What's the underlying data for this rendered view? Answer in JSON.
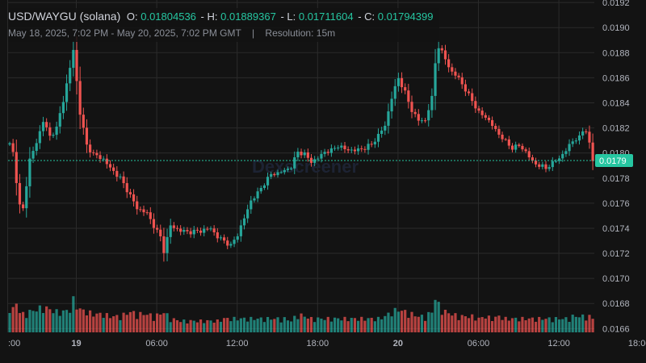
{
  "legend": {
    "symbol": "USD/WAYGU (solana)",
    "open_label": "O:",
    "open": "0.01804536",
    "high_label": "H:",
    "high": "0.01889367",
    "low_label": "L:",
    "low": "0.01711604",
    "close_label": "C:",
    "close": "0.01794399",
    "date_range": "May 18, 2025, 7:02 PM - May 20, 2025, 7:02 PM GMT",
    "separator": "|",
    "resolution": "Resolution: 15m"
  },
  "watermark": "Dexscreener",
  "colors": {
    "background": "#131313",
    "grid": "#2b2b2b",
    "up": "#26a69a",
    "down": "#ef5350",
    "up_volume": "#26a69a",
    "down_volume": "#ef5350",
    "text": "#d1d4dc",
    "axis_text": "#b2b5be",
    "price_tag": "#26c6a1"
  },
  "chart_data": {
    "type": "candlestick",
    "title": "USD/WAYGU (solana)",
    "resolution": "15m",
    "y_range": [
      0.01657,
      0.01922
    ],
    "y_ticks": [
      "0.0192",
      "0.0190",
      "0.0188",
      "0.0186",
      "0.0184",
      "0.0182",
      "0.0180",
      "0.0178",
      "0.0176",
      "0.0174",
      "0.0172",
      "0.0170",
      "0.0168",
      "0.0166"
    ],
    "y_tick_values": [
      0.0192,
      0.019,
      0.0188,
      0.0186,
      0.0184,
      0.0182,
      0.018,
      0.0178,
      0.0176,
      0.0174,
      0.0172,
      0.017,
      0.0168,
      0.0166
    ],
    "x_ticks": [
      {
        "label": ":00",
        "hours_from_start": -0.15,
        "bold": false
      },
      {
        "label": "19",
        "hours_from_start": 4.97,
        "bold": true
      },
      {
        "label": "06:00",
        "hours_from_start": 10.97,
        "bold": false
      },
      {
        "label": "12:00",
        "hours_from_start": 16.97,
        "bold": false
      },
      {
        "label": "18:00",
        "hours_from_start": 22.97,
        "bold": false
      },
      {
        "label": "20",
        "hours_from_start": 28.97,
        "bold": true
      },
      {
        "label": "06:00",
        "hours_from_start": 34.97,
        "bold": false
      },
      {
        "label": "12:00",
        "hours_from_start": 40.97,
        "bold": false
      },
      {
        "label": "18:00",
        "hours_from_start": 46.97,
        "bold": false
      }
    ],
    "last_price": 0.01794,
    "last_price_label": "0.0179",
    "anchors": [
      [
        0,
        0.01807,
        1.2
      ],
      [
        1,
        0.018,
        1.0
      ],
      [
        2,
        0.01778,
        1.3
      ],
      [
        3,
        0.01758,
        0.9
      ],
      [
        4,
        0.01755,
        0.8
      ],
      [
        6,
        0.01795,
        0.9
      ],
      [
        8,
        0.01808,
        1.0
      ],
      [
        10,
        0.01826,
        1.1
      ],
      [
        12,
        0.01813,
        1.0
      ],
      [
        14,
        0.0182,
        0.9
      ],
      [
        16,
        0.01842,
        0.9
      ],
      [
        18,
        0.01868,
        1.0
      ],
      [
        19,
        0.01882,
        1.4
      ],
      [
        21,
        0.01832,
        1.0
      ],
      [
        23,
        0.01806,
        0.9
      ],
      [
        25,
        0.01799,
        0.8
      ],
      [
        28,
        0.01795,
        0.8
      ],
      [
        30,
        0.01788,
        0.7
      ],
      [
        33,
        0.0178,
        0.7
      ],
      [
        36,
        0.01766,
        0.9
      ],
      [
        38,
        0.01756,
        0.8
      ],
      [
        41,
        0.01752,
        0.8
      ],
      [
        43,
        0.01742,
        0.7
      ],
      [
        45,
        0.01733,
        0.8
      ],
      [
        46,
        0.01722,
        0.9
      ],
      [
        48,
        0.01742,
        0.6
      ],
      [
        51,
        0.01738,
        0.5
      ],
      [
        54,
        0.01737,
        0.5
      ],
      [
        57,
        0.01738,
        0.5
      ],
      [
        60,
        0.0174,
        0.5
      ],
      [
        62,
        0.01733,
        0.5
      ],
      [
        64,
        0.0173,
        0.6
      ],
      [
        66,
        0.01726,
        0.6
      ],
      [
        68,
        0.01735,
        0.6
      ],
      [
        70,
        0.01748,
        0.6
      ],
      [
        72,
        0.01762,
        0.6
      ],
      [
        74,
        0.01768,
        0.6
      ],
      [
        76,
        0.01776,
        0.6
      ],
      [
        78,
        0.01783,
        0.6
      ],
      [
        80,
        0.01784,
        0.6
      ],
      [
        82,
        0.01786,
        0.6
      ],
      [
        84,
        0.01789,
        0.5
      ],
      [
        86,
        0.01801,
        0.8
      ],
      [
        88,
        0.01799,
        0.7
      ],
      [
        90,
        0.01793,
        0.6
      ],
      [
        92,
        0.01796,
        0.6
      ],
      [
        94,
        0.01801,
        0.6
      ],
      [
        96,
        0.01802,
        0.6
      ],
      [
        98,
        0.01806,
        0.6
      ],
      [
        100,
        0.01803,
        0.6
      ],
      [
        103,
        0.01802,
        0.6
      ],
      [
        106,
        0.01804,
        0.6
      ],
      [
        108,
        0.01807,
        0.6
      ],
      [
        110,
        0.01814,
        0.6
      ],
      [
        112,
        0.01822,
        0.7
      ],
      [
        114,
        0.01844,
        0.9
      ],
      [
        116,
        0.0186,
        1.0
      ],
      [
        118,
        0.01848,
        0.9
      ],
      [
        120,
        0.01834,
        0.8
      ],
      [
        122,
        0.01826,
        0.7
      ],
      [
        124,
        0.01826,
        0.7
      ],
      [
        126,
        0.01844,
        0.9
      ],
      [
        127,
        0.01872,
        1.5
      ],
      [
        128,
        0.01885,
        1.2
      ],
      [
        130,
        0.01875,
        0.9
      ],
      [
        132,
        0.01864,
        0.8
      ],
      [
        134,
        0.0186,
        0.7
      ],
      [
        136,
        0.0185,
        0.7
      ],
      [
        138,
        0.01842,
        0.7
      ],
      [
        140,
        0.01832,
        0.6
      ],
      [
        142,
        0.01829,
        0.7
      ],
      [
        144,
        0.01822,
        0.6
      ],
      [
        146,
        0.01815,
        0.7
      ],
      [
        148,
        0.01809,
        0.6
      ],
      [
        150,
        0.01804,
        0.6
      ],
      [
        152,
        0.01806,
        0.6
      ],
      [
        154,
        0.01801,
        0.6
      ],
      [
        156,
        0.01793,
        0.6
      ],
      [
        158,
        0.0179,
        0.6
      ],
      [
        160,
        0.01788,
        0.6
      ],
      [
        162,
        0.01792,
        0.6
      ],
      [
        164,
        0.01796,
        0.6
      ],
      [
        166,
        0.01802,
        0.6
      ],
      [
        168,
        0.0181,
        0.7
      ],
      [
        170,
        0.01812,
        0.7
      ],
      [
        171,
        0.01818,
        0.7
      ],
      [
        172,
        0.01818,
        0.7
      ],
      [
        173,
        0.01807,
        0.7
      ],
      [
        174,
        0.01794,
        0.6
      ]
    ]
  }
}
